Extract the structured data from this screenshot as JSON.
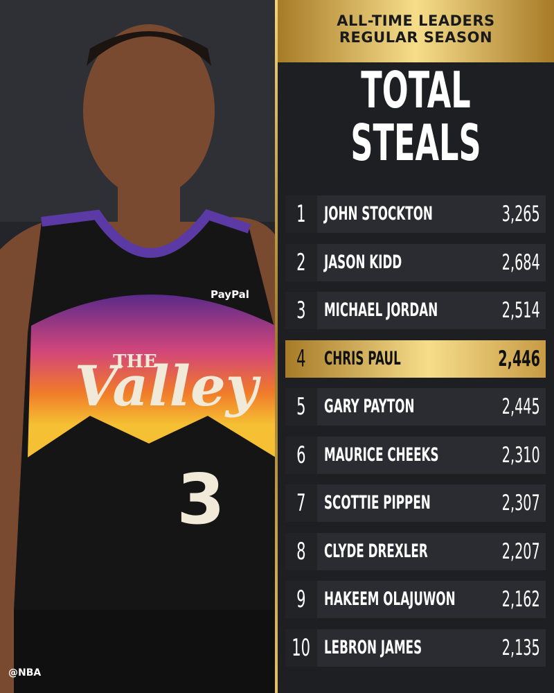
{
  "header": {
    "line1": "ALL-TIME LEADERS",
    "line2": "REGULAR SEASON"
  },
  "title": {
    "line1": "TOTAL",
    "line2": "STEALS"
  },
  "photo": {
    "jersey_word1": "THE",
    "jersey_word2": "Valley",
    "sponsor": "PayPal",
    "number": "3"
  },
  "credit": "@NBA",
  "table": {
    "rows": [
      {
        "rank": 1,
        "name": "JOHN STOCKTON",
        "steals": "3,265"
      },
      {
        "rank": 2,
        "name": "JASON KIDD",
        "steals": "2,684"
      },
      {
        "rank": 3,
        "name": "MICHAEL JORDAN",
        "steals": "2,514"
      },
      {
        "rank": 4,
        "name": "CHRIS PAUL",
        "steals": "2,446",
        "highlight": true
      },
      {
        "rank": 5,
        "name": "GARY PAYTON",
        "steals": "2,445"
      },
      {
        "rank": 6,
        "name": "MAURICE CHEEKS",
        "steals": "2,310"
      },
      {
        "rank": 7,
        "name": "SCOTTIE PIPPEN",
        "steals": "2,307"
      },
      {
        "rank": 8,
        "name": "CLYDE DREXLER",
        "steals": "2,207"
      },
      {
        "rank": 9,
        "name": "HAKEEM OLAJUWON",
        "steals": "2,162"
      },
      {
        "rank": 10,
        "name": "LEBRON JAMES",
        "steals": "2,135"
      }
    ]
  }
}
